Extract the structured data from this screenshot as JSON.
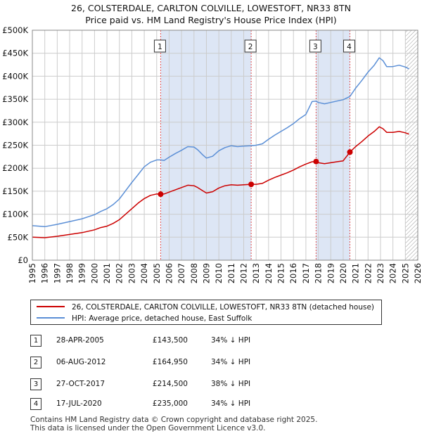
{
  "title": {
    "line1": "26, COLSTERDALE, CARLTON COLVILLE, LOWESTOFT, NR33 8TN",
    "line2": "Price paid vs. HM Land Registry's House Price Index (HPI)"
  },
  "colors": {
    "property": "#cc0000",
    "hpi": "#5b8fd6",
    "shade": "#dde6f5",
    "grid": "#cccccc",
    "marker_line": "#e05050"
  },
  "chart_data": {
    "type": "line",
    "xlim": [
      1995,
      2026
    ],
    "ylim": [
      0,
      500000
    ],
    "x_ticks": [
      "1995",
      "1996",
      "1997",
      "1998",
      "1999",
      "2000",
      "2001",
      "2002",
      "2003",
      "2004",
      "2005",
      "2006",
      "2007",
      "2008",
      "2009",
      "2010",
      "2011",
      "2012",
      "2013",
      "2014",
      "2015",
      "2016",
      "2017",
      "2018",
      "2019",
      "2020",
      "2021",
      "2022",
      "2023",
      "2024",
      "2025",
      "2026"
    ],
    "y_ticks": [
      {
        "value": 0,
        "label": "£0"
      },
      {
        "value": 50000,
        "label": "£50K"
      },
      {
        "value": 100000,
        "label": "£100K"
      },
      {
        "value": 150000,
        "label": "£150K"
      },
      {
        "value": 200000,
        "label": "£200K"
      },
      {
        "value": 250000,
        "label": "£250K"
      },
      {
        "value": 300000,
        "label": "£300K"
      },
      {
        "value": 350000,
        "label": "£350K"
      },
      {
        "value": 400000,
        "label": "£400K"
      },
      {
        "value": 450000,
        "label": "£450K"
      },
      {
        "value": 500000,
        "label": "£500K"
      }
    ],
    "series": [
      {
        "name": "26, COLSTERDALE, CARLTON COLVILLE, LOWESTOFT, NR33 8TN (detached house)",
        "color": "#cc0000",
        "points": [
          [
            1995.0,
            50000
          ],
          [
            1996.0,
            49000
          ],
          [
            1997.0,
            52000
          ],
          [
            1998.0,
            56000
          ],
          [
            1999.0,
            60000
          ],
          [
            2000.0,
            66000
          ],
          [
            2000.5,
            71000
          ],
          [
            2001.0,
            74000
          ],
          [
            2001.5,
            80000
          ],
          [
            2002.0,
            88000
          ],
          [
            2002.5,
            100000
          ],
          [
            2003.0,
            112000
          ],
          [
            2003.5,
            124000
          ],
          [
            2004.0,
            134000
          ],
          [
            2004.5,
            141000
          ],
          [
            2005.0,
            144000
          ],
          [
            2005.32,
            143500
          ],
          [
            2005.6,
            144000
          ],
          [
            2006.0,
            148000
          ],
          [
            2006.5,
            153000
          ],
          [
            2007.0,
            158000
          ],
          [
            2007.5,
            163000
          ],
          [
            2008.0,
            162000
          ],
          [
            2008.3,
            158000
          ],
          [
            2008.7,
            151000
          ],
          [
            2009.0,
            146000
          ],
          [
            2009.5,
            149000
          ],
          [
            2010.0,
            157000
          ],
          [
            2010.5,
            162000
          ],
          [
            2011.0,
            164000
          ],
          [
            2011.5,
            163000
          ],
          [
            2012.0,
            164000
          ],
          [
            2012.6,
            164950
          ],
          [
            2013.0,
            165000
          ],
          [
            2013.5,
            167000
          ],
          [
            2014.0,
            174000
          ],
          [
            2014.5,
            180000
          ],
          [
            2015.0,
            185000
          ],
          [
            2015.5,
            190000
          ],
          [
            2016.0,
            196000
          ],
          [
            2016.5,
            203000
          ],
          [
            2017.0,
            209000
          ],
          [
            2017.5,
            214000
          ],
          [
            2017.82,
            214500
          ],
          [
            2018.0,
            212000
          ],
          [
            2018.5,
            210000
          ],
          [
            2019.0,
            212000
          ],
          [
            2019.5,
            214000
          ],
          [
            2020.0,
            216000
          ],
          [
            2020.54,
            235000
          ],
          [
            2021.0,
            247000
          ],
          [
            2021.5,
            258000
          ],
          [
            2022.0,
            270000
          ],
          [
            2022.5,
            280000
          ],
          [
            2022.9,
            290000
          ],
          [
            2023.2,
            286000
          ],
          [
            2023.5,
            278000
          ],
          [
            2024.0,
            278000
          ],
          [
            2024.5,
            280000
          ],
          [
            2025.0,
            277000
          ],
          [
            2025.3,
            274000
          ]
        ]
      },
      {
        "name": "HPI: Average price, detached house, East Suffolk",
        "color": "#5b8fd6",
        "points": [
          [
            1995.0,
            75000
          ],
          [
            1996.0,
            73000
          ],
          [
            1997.0,
            78000
          ],
          [
            1998.0,
            84000
          ],
          [
            1999.0,
            90000
          ],
          [
            2000.0,
            99000
          ],
          [
            2000.5,
            106000
          ],
          [
            2001.0,
            112000
          ],
          [
            2001.5,
            121000
          ],
          [
            2002.0,
            133000
          ],
          [
            2002.5,
            151000
          ],
          [
            2003.0,
            169000
          ],
          [
            2003.5,
            186000
          ],
          [
            2004.0,
            203000
          ],
          [
            2004.5,
            213000
          ],
          [
            2005.0,
            218000
          ],
          [
            2005.32,
            218000
          ],
          [
            2005.6,
            217000
          ],
          [
            2006.0,
            224000
          ],
          [
            2006.5,
            232000
          ],
          [
            2007.0,
            239000
          ],
          [
            2007.5,
            247000
          ],
          [
            2008.0,
            246000
          ],
          [
            2008.3,
            240000
          ],
          [
            2008.7,
            229000
          ],
          [
            2009.0,
            222000
          ],
          [
            2009.5,
            226000
          ],
          [
            2010.0,
            238000
          ],
          [
            2010.5,
            245000
          ],
          [
            2011.0,
            249000
          ],
          [
            2011.5,
            247000
          ],
          [
            2012.0,
            248000
          ],
          [
            2012.6,
            249000
          ],
          [
            2013.0,
            250000
          ],
          [
            2013.5,
            253000
          ],
          [
            2014.0,
            263000
          ],
          [
            2014.5,
            272000
          ],
          [
            2015.0,
            280000
          ],
          [
            2015.5,
            288000
          ],
          [
            2016.0,
            297000
          ],
          [
            2016.5,
            308000
          ],
          [
            2017.0,
            317000
          ],
          [
            2017.5,
            345000
          ],
          [
            2017.82,
            346000
          ],
          [
            2018.0,
            343000
          ],
          [
            2018.5,
            340000
          ],
          [
            2019.0,
            343000
          ],
          [
            2019.5,
            346000
          ],
          [
            2020.0,
            349000
          ],
          [
            2020.54,
            356000
          ],
          [
            2021.0,
            374000
          ],
          [
            2021.5,
            391000
          ],
          [
            2022.0,
            409000
          ],
          [
            2022.5,
            424000
          ],
          [
            2022.9,
            440000
          ],
          [
            2023.2,
            434000
          ],
          [
            2023.5,
            421000
          ],
          [
            2024.0,
            421000
          ],
          [
            2024.5,
            424000
          ],
          [
            2025.0,
            420000
          ],
          [
            2025.3,
            416000
          ]
        ]
      }
    ],
    "sales": [
      {
        "num": "1",
        "x": 2005.32,
        "price": 143500
      },
      {
        "num": "2",
        "x": 2012.6,
        "price": 164950
      },
      {
        "num": "3",
        "x": 2017.82,
        "price": 214500
      },
      {
        "num": "4",
        "x": 2020.54,
        "price": 235000
      }
    ],
    "shaded_ranges": [
      [
        2005.32,
        2012.6
      ],
      [
        2017.82,
        2020.54
      ]
    ],
    "hatched_from": 2025.0
  },
  "legend": {
    "property_label": "26, COLSTERDALE, CARLTON COLVILLE, LOWESTOFT, NR33 8TN (detached house)",
    "hpi_label": "HPI: Average price, detached house, East Suffolk"
  },
  "transactions": [
    {
      "num": "1",
      "date": "28-APR-2005",
      "price": "£143,500",
      "hpi": "34% ↓ HPI"
    },
    {
      "num": "2",
      "date": "06-AUG-2012",
      "price": "£164,950",
      "hpi": "34% ↓ HPI"
    },
    {
      "num": "3",
      "date": "27-OCT-2017",
      "price": "£214,500",
      "hpi": "38% ↓ HPI"
    },
    {
      "num": "4",
      "date": "17-JUL-2020",
      "price": "£235,000",
      "hpi": "34% ↓ HPI"
    }
  ],
  "footer": {
    "line1": "Contains HM Land Registry data © Crown copyright and database right 2025.",
    "line2": "This data is licensed under the Open Government Licence v3.0."
  }
}
